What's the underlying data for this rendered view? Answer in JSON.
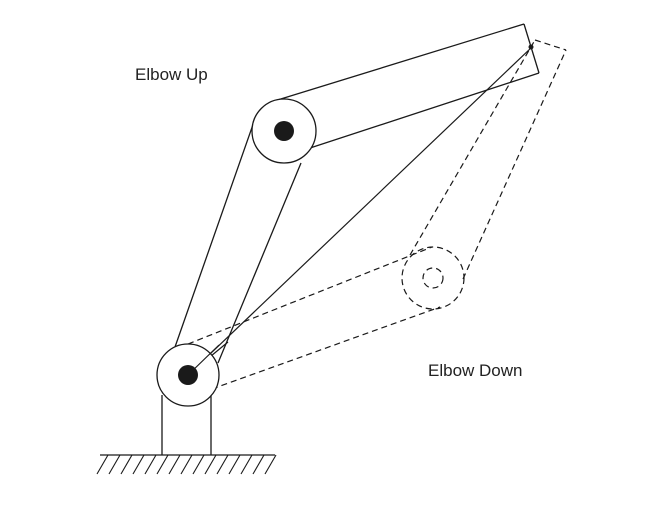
{
  "labels": {
    "elbow_up": "Elbow Up",
    "elbow_down": "Elbow Down"
  },
  "colors": {
    "line": "#1a1a1a",
    "joint_fill": "#1a1a1a",
    "background": "#ffffff"
  },
  "icons": {
    "ground": "ground-hatch-icon",
    "joint": "revolute-joint-icon"
  }
}
